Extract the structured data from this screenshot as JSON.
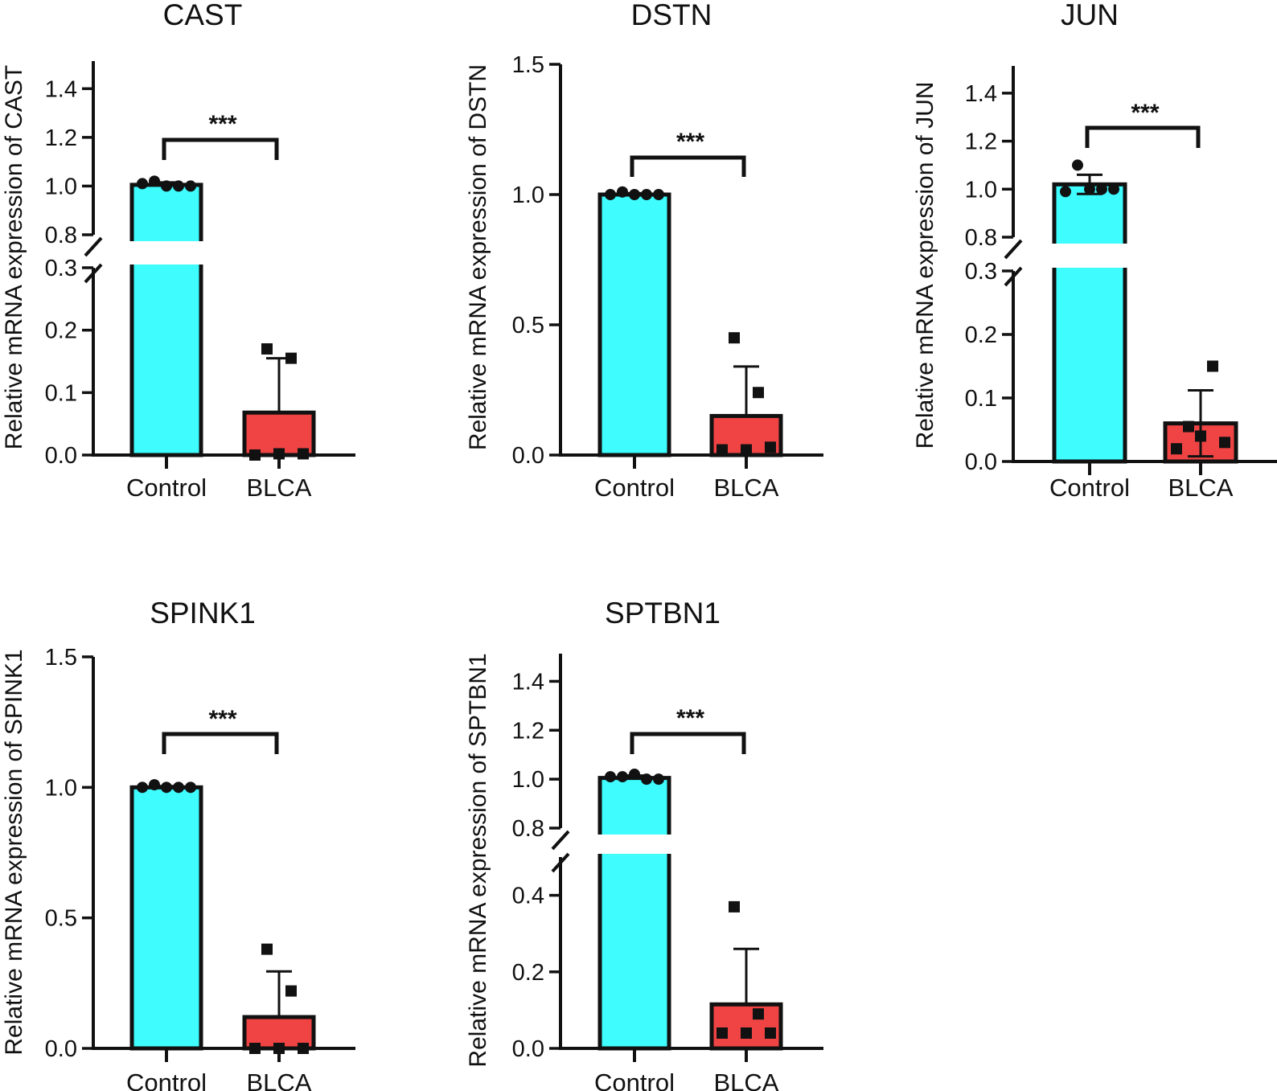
{
  "colors": {
    "control": "#3ffcff",
    "blca": "#f04444",
    "ink": "#111111"
  },
  "chart_data": [
    {
      "type": "bar",
      "title": "CAST",
      "ylabel": "Relative mRNA expression of CAST",
      "categories": [
        "Control",
        "BLCA"
      ],
      "significance": "***",
      "axis_break": {
        "lower": [
          0,
          0.3
        ],
        "upper": [
          0.8,
          1.5
        ]
      },
      "yticks": [
        0.0,
        0.1,
        0.2,
        0.3,
        0.8,
        1.0,
        1.2,
        1.4
      ],
      "ytick_labels": [
        "0.0",
        "0.1",
        "0.2",
        "0.3",
        "0.8",
        "1.0",
        "1.2",
        "1.4"
      ],
      "means": [
        1.005,
        0.068
      ],
      "errors": [
        0.01,
        0.087
      ],
      "points": [
        [
          1.01,
          1.02,
          1.0,
          1.0,
          1.0
        ],
        [
          0.0,
          0.17,
          0.002,
          0.155,
          0.002
        ]
      ]
    },
    {
      "type": "bar",
      "title": "DSTN",
      "ylabel": "Relative mRNA expression of DSTN",
      "categories": [
        "Control",
        "BLCA"
      ],
      "significance": "***",
      "ylim": [
        0,
        1.5
      ],
      "yticks": [
        0.0,
        0.5,
        1.0,
        1.5
      ],
      "ytick_labels": [
        "0.0",
        "0.5",
        "1.0",
        "1.5"
      ],
      "means": [
        1.0,
        0.15
      ],
      "errors": [
        0.005,
        0.19
      ],
      "points": [
        [
          1.0,
          1.01,
          1.0,
          1.0,
          1.0
        ],
        [
          0.02,
          0.45,
          0.02,
          0.24,
          0.03
        ]
      ]
    },
    {
      "type": "bar",
      "title": "JUN",
      "ylabel": "Relative mRNA expression of JUN",
      "categories": [
        "Control",
        "BLCA"
      ],
      "significance": "***",
      "axis_break": {
        "lower": [
          0,
          0.3
        ],
        "upper": [
          0.8,
          1.5
        ]
      },
      "yticks": [
        0.0,
        0.1,
        0.2,
        0.3,
        0.8,
        1.0,
        1.2,
        1.4
      ],
      "ytick_labels": [
        "0.0",
        "0.1",
        "0.2",
        "0.3",
        "0.8",
        "1.0",
        "1.2",
        "1.4"
      ],
      "means": [
        1.02,
        0.06
      ],
      "errors": [
        0.04,
        0.052
      ],
      "points": [
        [
          0.99,
          1.1,
          1.0,
          1.0,
          1.0
        ],
        [
          0.02,
          0.055,
          0.04,
          0.15,
          0.03
        ]
      ]
    },
    {
      "type": "bar",
      "title": "SPINK1",
      "ylabel": "Relative mRNA expression of SPINK1",
      "categories": [
        "Control",
        "BLCA"
      ],
      "significance": "***",
      "ylim": [
        0,
        1.5
      ],
      "yticks": [
        0.0,
        0.5,
        1.0,
        1.5
      ],
      "ytick_labels": [
        "0.0",
        "0.5",
        "1.0",
        "1.5"
      ],
      "means": [
        1.0,
        0.12
      ],
      "errors": [
        0.005,
        0.175
      ],
      "points": [
        [
          1.0,
          1.01,
          1.0,
          1.0,
          1.0
        ],
        [
          0.0,
          0.38,
          0.0,
          0.22,
          0.0
        ]
      ]
    },
    {
      "type": "bar",
      "title": "SPTBN1",
      "ylabel": "Relative mRNA expression of SPTBN1",
      "categories": [
        "Control",
        "BLCA"
      ],
      "significance": "***",
      "axis_break": {
        "lower": [
          0,
          0.5
        ],
        "upper": [
          0.8,
          1.5
        ]
      },
      "yticks": [
        0.0,
        0.2,
        0.4,
        0.8,
        1.0,
        1.2,
        1.4
      ],
      "ytick_labels": [
        "0.0",
        "0.2",
        "0.4",
        "0.8",
        "1.0",
        "1.2",
        "1.4"
      ],
      "means": [
        1.005,
        0.115
      ],
      "errors": [
        0.01,
        0.145
      ],
      "points": [
        [
          1.01,
          1.01,
          1.02,
          1.0,
          1.0
        ],
        [
          0.04,
          0.37,
          0.04,
          0.09,
          0.04
        ]
      ]
    }
  ]
}
